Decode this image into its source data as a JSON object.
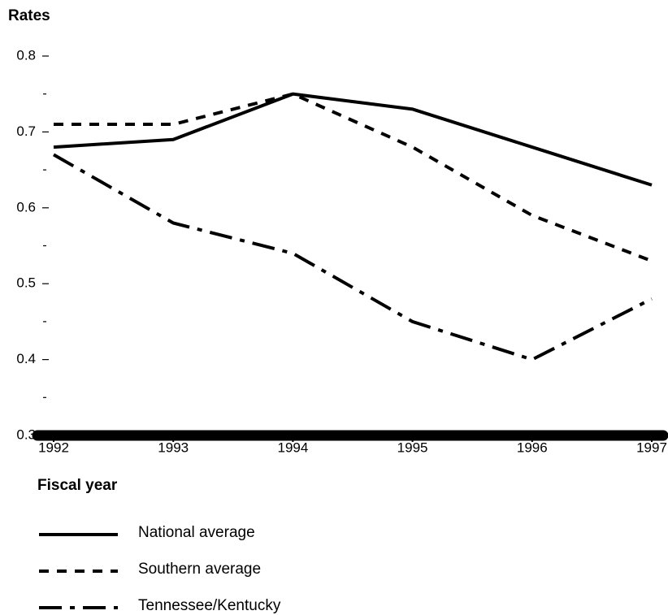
{
  "chart_data": {
    "type": "line",
    "y_label": "Rates",
    "x_label": "Fiscal year",
    "x": [
      1992,
      1993,
      1994,
      1995,
      1996,
      1997
    ],
    "xlim": [
      1992,
      1997
    ],
    "xticks": [
      1992,
      1993,
      1994,
      1995,
      1996,
      1997
    ],
    "ylim": [
      0.3,
      0.8
    ],
    "yticks": [
      0.3,
      0.4,
      0.5,
      0.6,
      0.7,
      0.8
    ],
    "minor_yticks": [
      0.35,
      0.45,
      0.55,
      0.65,
      0.75
    ],
    "series": [
      {
        "name": "National average",
        "color": "#000000",
        "linestyle": "solid",
        "values": [
          0.68,
          0.69,
          0.75,
          0.73,
          0.68,
          0.63
        ]
      },
      {
        "name": "Southern average",
        "color": "#000000",
        "linestyle": "dashed",
        "values": [
          0.71,
          0.71,
          0.75,
          0.68,
          0.59,
          0.53
        ]
      },
      {
        "name": "Tennessee/Kentucky",
        "color": "#000000",
        "linestyle": "dashdot",
        "values": [
          0.67,
          0.58,
          0.54,
          0.45,
          0.4,
          0.48
        ]
      }
    ]
  }
}
